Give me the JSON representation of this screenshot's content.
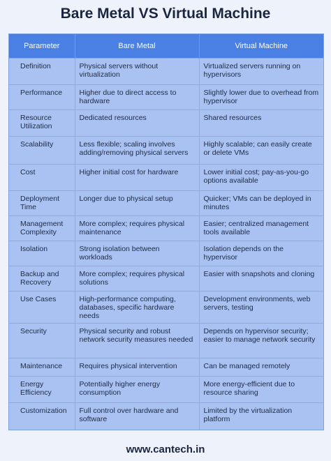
{
  "title": "Bare Metal VS Virtual Machine",
  "headers": [
    "Parameter",
    "Bare Metal",
    "Virtual Machine"
  ],
  "rows": [
    {
      "param": "Definition",
      "bare": "Physical servers without virtualization",
      "vm": "Virtualized servers running on hypervisors"
    },
    {
      "param": "Performance",
      "bare": "Higher due to direct access to hardware",
      "vm": "Slightly lower due to overhead from hypervisor"
    },
    {
      "param": "Resource Utilization",
      "bare": "Dedicated resources",
      "vm": "Shared resources"
    },
    {
      "param": "Scalability",
      "bare": "Less flexible; scaling involves adding/removing physical servers",
      "vm": "Highly scalable; can easily create or delete VMs"
    },
    {
      "param": "Cost",
      "bare": "Higher initial cost for hardware",
      "vm": "Lower initial cost; pay-as-you-go options available"
    },
    {
      "param": "Deployment Time",
      "bare": "Longer due to physical setup",
      "vm": "Quicker; VMs can be deployed in minutes"
    },
    {
      "param": "Management Complexity",
      "bare": "More complex; requires physical maintenance",
      "vm": "Easier; centralized management tools available"
    },
    {
      "param": "Isolation",
      "bare": "Strong isolation between workloads",
      "vm": "Isolation depends on the hypervisor"
    },
    {
      "param": "Backup and Recovery",
      "bare": "More complex; requires physical solutions",
      "vm": "Easier with snapshots and cloning"
    },
    {
      "param": "Use Cases",
      "bare": "High-performance computing, databases, specific hardware needs",
      "vm": "Development environments, web servers, testing"
    },
    {
      "param": "Security",
      "bare": "Physical security and robust network security measures needed",
      "vm": "Depends on hypervisor security; easier to manage network security"
    },
    {
      "param": "Maintenance",
      "bare": "Requires physical intervention",
      "vm": "Can be managed remotely"
    },
    {
      "param": "Energy Efficiency",
      "bare": "Potentially higher energy consumption",
      "vm": "More energy-efficient due to resource sharing"
    },
    {
      "param": "Customization",
      "bare": "Full control over hardware and software",
      "vm": "Limited by the virtualization platform"
    }
  ],
  "footer": "www.cantech.in"
}
